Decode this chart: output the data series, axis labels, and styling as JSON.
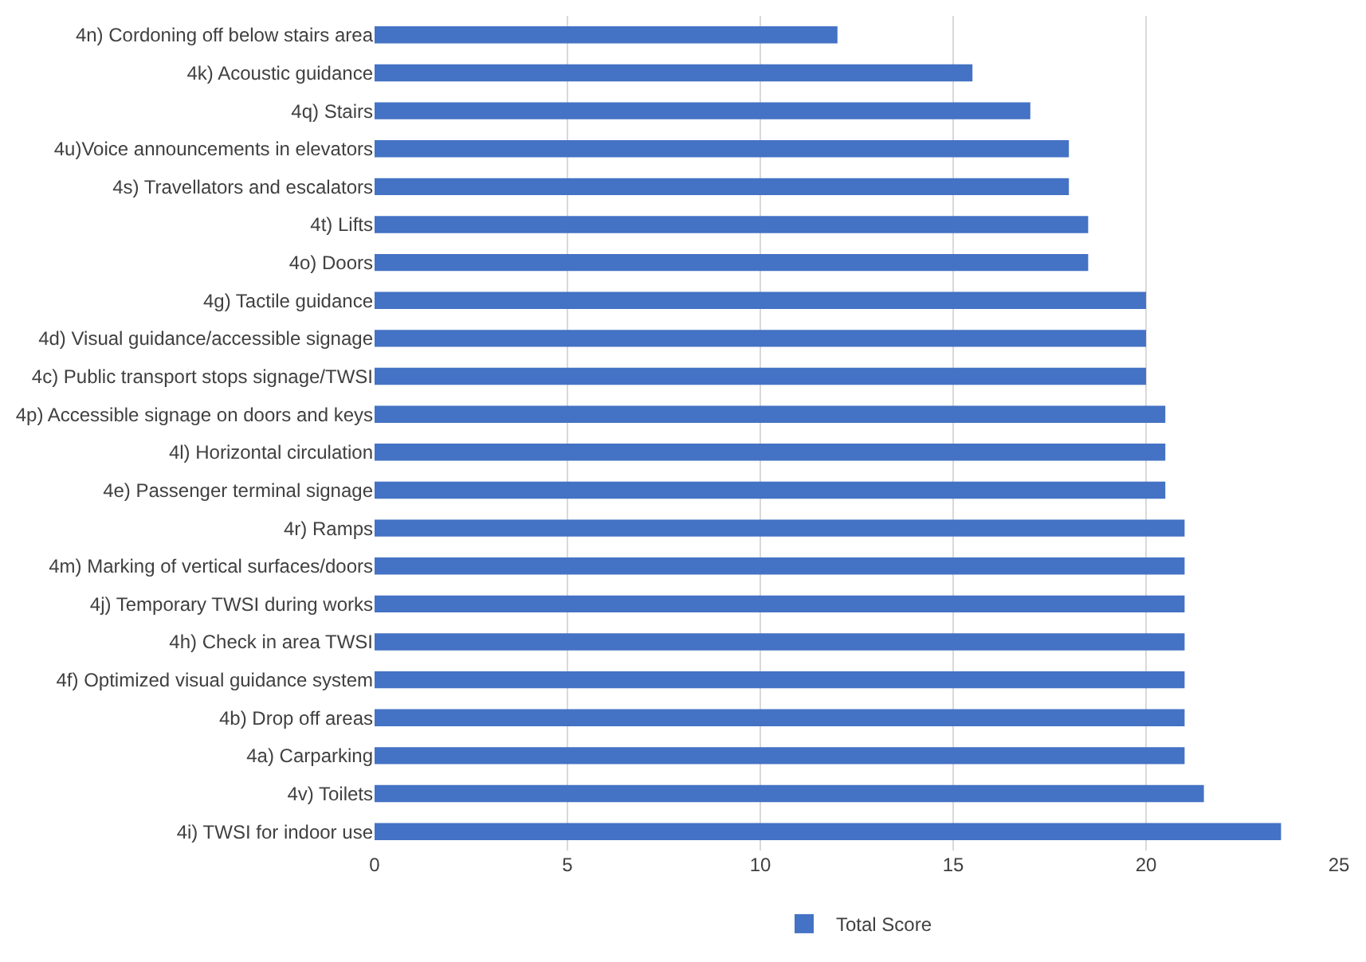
{
  "chart_data": {
    "type": "bar",
    "orientation": "horizontal",
    "categories": [
      "4n) Cordoning off below stairs area",
      "4k) Acoustic guidance",
      "4q) Stairs",
      "4u)Voice announcements in elevators",
      "4s) Travellators and escalators",
      "4t) Lifts",
      "4o) Doors",
      "4g) Tactile guidance",
      "4d) Visual guidance/accessible signage",
      "4c) Public transport stops signage/TWSI",
      "4p) Accessible signage on doors and keys",
      "4l) Horizontal circulation",
      "4e) Passenger terminal signage",
      "4r) Ramps",
      "4m) Marking of vertical surfaces/doors",
      "4j) Temporary TWSI during works",
      "4h) Check in area TWSI",
      "4f) Optimized visual guidance system",
      "4b) Drop off areas",
      "4a) Carparking",
      "4v) Toilets",
      "4i) TWSI for indoor use"
    ],
    "series": [
      {
        "name": "Total Score",
        "color": "#4472c4",
        "values": [
          12,
          15.5,
          17,
          18,
          18,
          18.5,
          18.5,
          20,
          20,
          20,
          20.5,
          20.5,
          20.5,
          21,
          21,
          21,
          21,
          21,
          21,
          21,
          21.5,
          23.5
        ]
      }
    ],
    "xlim": [
      0,
      25
    ],
    "xticks": [
      0,
      5,
      10,
      15,
      20,
      25
    ],
    "grid": "x",
    "legend": "bottom"
  }
}
